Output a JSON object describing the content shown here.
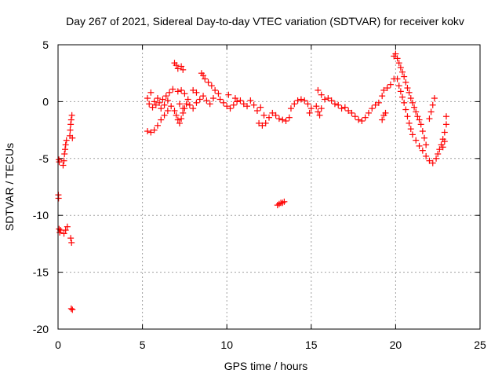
{
  "chart_data": {
    "type": "scatter",
    "title": "Day 267 of 2021, Sidereal Day-to-day VTEC variation (SDTVAR) for receiver kokv",
    "xlabel": "GPS time / hours",
    "ylabel": "SDTVAR / TECUs",
    "xlim": [
      0,
      25
    ],
    "ylim": [
      -20,
      5
    ],
    "grid": true,
    "marker": "+",
    "series_color": "#ff0000",
    "x_ticks": [
      0,
      5,
      10,
      15,
      20,
      25
    ],
    "x_tick_labels": [
      "0",
      "5",
      "10",
      "15",
      "20",
      "25"
    ],
    "y_ticks": [
      5,
      0,
      -5,
      -10,
      -15,
      -20
    ],
    "y_tick_labels": [
      "5",
      "0",
      "-5",
      "-10",
      "-15",
      "-20"
    ],
    "series": [
      {
        "name": "SDTVAR",
        "points": [
          [
            0.02,
            -8.2
          ],
          [
            0.03,
            -8.5
          ],
          [
            0.05,
            -5.1
          ],
          [
            0.07,
            -5.3
          ],
          [
            0.06,
            -11.2
          ],
          [
            0.1,
            -11.5
          ],
          [
            0.15,
            -11.3
          ],
          [
            0.3,
            -5.6
          ],
          [
            0.35,
            -5.2
          ],
          [
            0.38,
            -4.6
          ],
          [
            0.42,
            -4.2
          ],
          [
            0.45,
            -3.8
          ],
          [
            0.5,
            -3.4
          ],
          [
            0.35,
            -11.6
          ],
          [
            0.45,
            -11.3
          ],
          [
            0.55,
            -11.0
          ],
          [
            0.7,
            -3.0
          ],
          [
            0.72,
            -2.5
          ],
          [
            0.75,
            -2.0
          ],
          [
            0.78,
            -1.6
          ],
          [
            0.82,
            -1.2
          ],
          [
            0.85,
            -3.2
          ],
          [
            0.75,
            -12.0
          ],
          [
            0.8,
            -12.4
          ],
          [
            0.78,
            -18.2
          ],
          [
            0.85,
            -18.3
          ],
          [
            5.3,
            -2.6
          ],
          [
            5.5,
            -2.7
          ],
          [
            5.7,
            -2.5
          ],
          [
            5.9,
            -2.1
          ],
          [
            6.1,
            -1.6
          ],
          [
            6.3,
            -1.2
          ],
          [
            6.5,
            -0.8
          ],
          [
            6.7,
            -0.4
          ],
          [
            5.3,
            0.3
          ],
          [
            5.4,
            -0.2
          ],
          [
            5.5,
            0.8
          ],
          [
            5.6,
            -0.5
          ],
          [
            5.8,
            -0.3
          ],
          [
            6.0,
            -0.1
          ],
          [
            6.2,
            0.2
          ],
          [
            6.4,
            0.5
          ],
          [
            6.6,
            0.8
          ],
          [
            6.8,
            1.1
          ],
          [
            5.7,
            0.0
          ],
          [
            5.9,
            0.3
          ],
          [
            6.1,
            -0.6
          ],
          [
            6.3,
            -0.3
          ],
          [
            6.5,
            0.1
          ],
          [
            6.9,
            3.4
          ],
          [
            7.0,
            3.2
          ],
          [
            7.1,
            2.9
          ],
          [
            7.3,
            3.1
          ],
          [
            7.4,
            2.8
          ],
          [
            6.9,
            -0.8
          ],
          [
            7.0,
            -1.2
          ],
          [
            7.1,
            -1.6
          ],
          [
            7.2,
            -1.9
          ],
          [
            7.3,
            -1.5
          ],
          [
            7.4,
            -1.0
          ],
          [
            7.5,
            -0.6
          ],
          [
            7.6,
            -0.2
          ],
          [
            7.7,
            0.2
          ],
          [
            7.1,
            0.9
          ],
          [
            7.3,
            1.0
          ],
          [
            7.5,
            0.7
          ],
          [
            7.2,
            -0.2
          ],
          [
            7.4,
            -0.6
          ],
          [
            7.8,
            -0.3
          ],
          [
            8.0,
            -0.6
          ],
          [
            8.2,
            -0.1
          ],
          [
            8.4,
            0.2
          ],
          [
            8.6,
            0.5
          ],
          [
            8.8,
            0.1
          ],
          [
            9.0,
            -0.2
          ],
          [
            9.2,
            0.3
          ],
          [
            8.0,
            1.0
          ],
          [
            8.2,
            0.8
          ],
          [
            8.5,
            2.5
          ],
          [
            8.6,
            2.3
          ],
          [
            8.7,
            2.0
          ],
          [
            8.9,
            1.7
          ],
          [
            9.1,
            1.4
          ],
          [
            9.3,
            1.0
          ],
          [
            9.5,
            0.7
          ],
          [
            9.6,
            0.2
          ],
          [
            9.8,
            -0.1
          ],
          [
            10.0,
            -0.4
          ],
          [
            10.2,
            -0.6
          ],
          [
            10.4,
            -0.3
          ],
          [
            10.6,
            0.0
          ],
          [
            10.8,
            0.1
          ],
          [
            11.0,
            -0.2
          ],
          [
            11.2,
            -0.4
          ],
          [
            10.1,
            0.6
          ],
          [
            10.5,
            0.3
          ],
          [
            11.4,
            0.1
          ],
          [
            11.6,
            -0.3
          ],
          [
            11.8,
            -0.8
          ],
          [
            11.9,
            -1.9
          ],
          [
            12.1,
            -2.1
          ],
          [
            12.3,
            -1.9
          ],
          [
            12.5,
            -1.4
          ],
          [
            12.7,
            -1.0
          ],
          [
            12.9,
            -1.2
          ],
          [
            13.1,
            -1.5
          ],
          [
            13.3,
            -1.6
          ],
          [
            13.5,
            -1.7
          ],
          [
            13.7,
            -1.4
          ],
          [
            12.2,
            -1.2
          ],
          [
            12.0,
            -0.5
          ],
          [
            13.8,
            -0.6
          ],
          [
            14.0,
            -0.2
          ],
          [
            14.2,
            0.1
          ],
          [
            14.4,
            0.2
          ],
          [
            14.6,
            0.1
          ],
          [
            14.8,
            -0.2
          ],
          [
            15.0,
            -0.6
          ],
          [
            14.9,
            -1.0
          ],
          [
            13.0,
            -9.1
          ],
          [
            13.1,
            -9.0
          ],
          [
            13.2,
            -8.9
          ],
          [
            13.3,
            -8.9
          ],
          [
            13.4,
            -8.8
          ],
          [
            15.3,
            -0.4
          ],
          [
            15.4,
            -0.9
          ],
          [
            15.5,
            -1.2
          ],
          [
            15.6,
            -0.6
          ],
          [
            15.4,
            1.0
          ],
          [
            15.6,
            0.6
          ],
          [
            15.8,
            0.2
          ],
          [
            16.0,
            0.3
          ],
          [
            16.2,
            0.1
          ],
          [
            16.4,
            -0.2
          ],
          [
            16.6,
            -0.3
          ],
          [
            16.8,
            -0.6
          ],
          [
            17.0,
            -0.5
          ],
          [
            17.2,
            -0.8
          ],
          [
            17.4,
            -1.0
          ],
          [
            17.6,
            -1.3
          ],
          [
            17.8,
            -1.6
          ],
          [
            18.0,
            -1.7
          ],
          [
            18.2,
            -1.4
          ],
          [
            18.4,
            -1.0
          ],
          [
            18.6,
            -0.6
          ],
          [
            18.8,
            -0.3
          ],
          [
            19.0,
            -0.1
          ],
          [
            19.2,
            0.5
          ],
          [
            19.3,
            1.0
          ],
          [
            19.5,
            1.2
          ],
          [
            19.7,
            1.5
          ],
          [
            19.9,
            2.0
          ],
          [
            19.2,
            -1.6
          ],
          [
            19.3,
            -1.2
          ],
          [
            19.4,
            -1.0
          ],
          [
            19.9,
            4.0
          ],
          [
            20.0,
            4.2
          ],
          [
            20.1,
            3.8
          ],
          [
            20.2,
            3.4
          ],
          [
            20.3,
            3.0
          ],
          [
            20.4,
            2.6
          ],
          [
            20.5,
            2.2
          ],
          [
            20.1,
            2.0
          ],
          [
            20.2,
            1.4
          ],
          [
            20.3,
            0.9
          ],
          [
            20.4,
            0.4
          ],
          [
            20.5,
            -0.1
          ],
          [
            20.6,
            -0.7
          ],
          [
            20.7,
            -1.3
          ],
          [
            20.8,
            -1.9
          ],
          [
            20.9,
            -2.4
          ],
          [
            20.6,
            1.7
          ],
          [
            20.7,
            1.2
          ],
          [
            20.8,
            0.8
          ],
          [
            20.9,
            0.3
          ],
          [
            21.0,
            -0.1
          ],
          [
            21.1,
            -0.5
          ],
          [
            21.2,
            -0.9
          ],
          [
            21.3,
            -1.3
          ],
          [
            21.4,
            -1.6
          ],
          [
            21.0,
            -2.9
          ],
          [
            21.2,
            -3.4
          ],
          [
            21.4,
            -3.9
          ],
          [
            21.6,
            -4.3
          ],
          [
            21.8,
            -4.8
          ],
          [
            22.0,
            -5.2
          ],
          [
            22.2,
            -5.4
          ],
          [
            22.4,
            -5.0
          ],
          [
            21.5,
            -2.0
          ],
          [
            21.6,
            -2.6
          ],
          [
            21.7,
            -3.2
          ],
          [
            21.8,
            -3.8
          ],
          [
            22.0,
            -1.5
          ],
          [
            22.1,
            -0.9
          ],
          [
            22.2,
            -0.3
          ],
          [
            22.3,
            0.3
          ],
          [
            22.5,
            -4.6
          ],
          [
            22.6,
            -4.2
          ],
          [
            22.7,
            -3.8
          ],
          [
            22.8,
            -3.3
          ],
          [
            22.9,
            -2.7
          ],
          [
            23.0,
            -2.0
          ],
          [
            23.0,
            -1.3
          ],
          [
            22.8,
            -4.0
          ],
          [
            22.9,
            -3.5
          ]
        ]
      }
    ]
  }
}
